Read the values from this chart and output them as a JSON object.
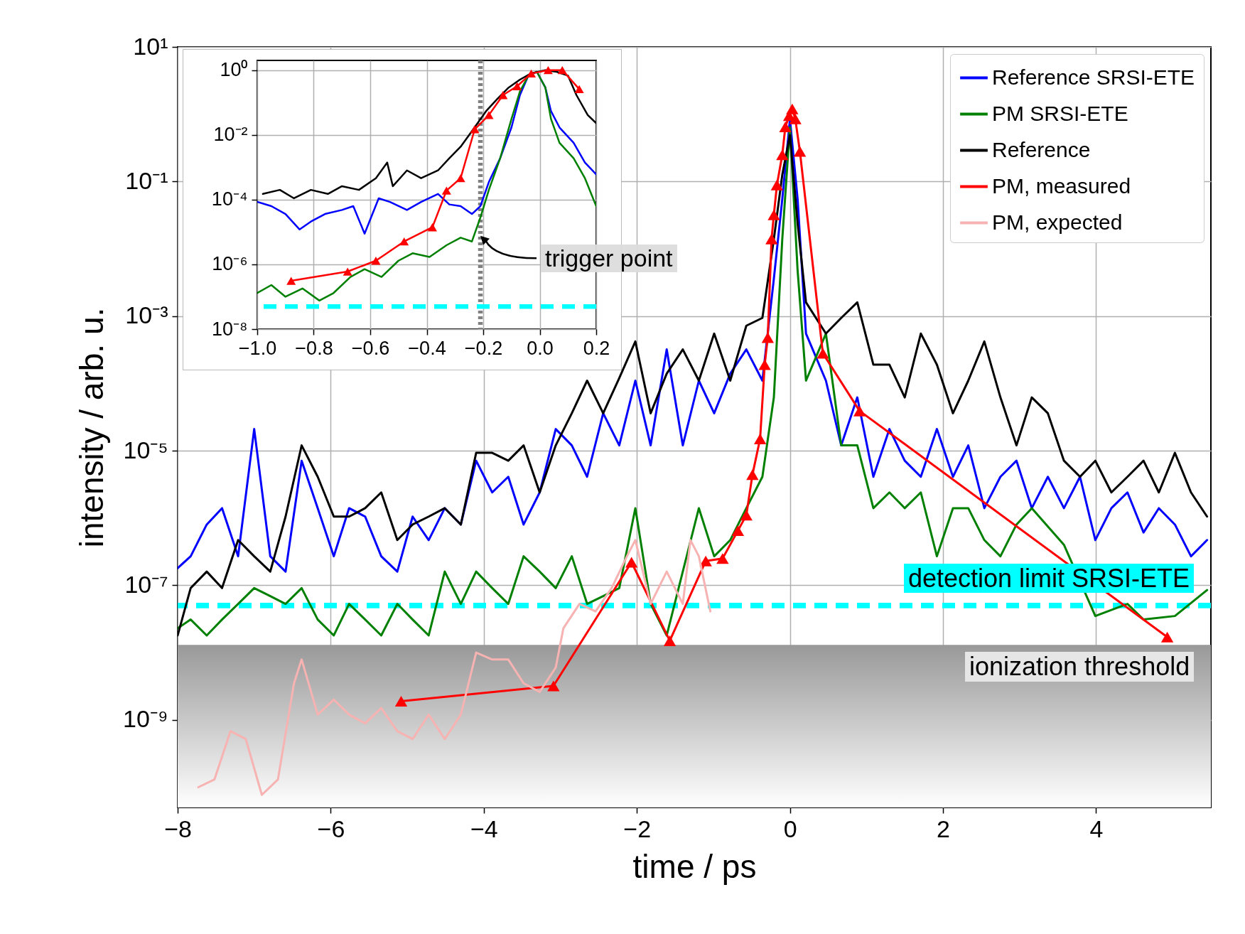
{
  "chart_data": [
    {
      "type": "line",
      "xlabel": "time / ps",
      "ylabel": "intensity / arb. u.",
      "log": "y",
      "grid": true,
      "legend": "top right",
      "xlim": [
        -8,
        5.5
      ],
      "xticks": [
        {
          "value": -8,
          "label": "−8"
        },
        {
          "value": -6,
          "label": "−6"
        },
        {
          "value": -4,
          "label": "−4"
        },
        {
          "value": -2,
          "label": "−2"
        },
        0,
        2,
        4
      ],
      "ylim": [
        5e-11,
        10
      ],
      "yticks": [
        {
          "value": 10,
          "label": "10¹"
        },
        {
          "value": 0.1,
          "label": "10⁻¹"
        },
        {
          "value": 0.001,
          "label": "10⁻³"
        },
        {
          "value": 1e-05,
          "label": "10⁻⁵"
        },
        {
          "value": 1e-07,
          "label": "10⁻⁷"
        },
        {
          "value": 1e-09,
          "label": "10⁻⁹"
        }
      ],
      "x": [
        -8.0,
        -7.83,
        -7.62,
        -7.42,
        -7.21,
        -7.0,
        -6.79,
        -6.59,
        -6.38,
        -6.17,
        -5.96,
        -5.76,
        -5.55,
        -5.34,
        -5.13,
        -4.93,
        -4.72,
        -4.51,
        -4.3,
        -4.1,
        -3.89,
        -3.68,
        -3.48,
        -3.27,
        -3.06,
        -2.85,
        -2.65,
        -2.44,
        -2.23,
        -2.02,
        -1.82,
        -1.61,
        -1.4,
        -1.19,
        -0.99,
        -0.78,
        -0.57,
        -0.36,
        -0.21,
        -0.1,
        0.0,
        0.1,
        0.21,
        0.47,
        0.67,
        0.88,
        1.09,
        1.3,
        1.5,
        1.71,
        1.92,
        2.13,
        2.33,
        2.54,
        2.75,
        2.96,
        3.16,
        3.37,
        3.58,
        3.79,
        3.99,
        4.2,
        4.41,
        4.62,
        4.82,
        5.03,
        5.24,
        5.45
      ],
      "series": [
        {
          "name": "Reference SRSI-ETE",
          "color": "#0000ff",
          "values": [
            1.8e-07,
            2.7e-07,
            8e-07,
            1.4e-06,
            2.7e-07,
            2.1e-05,
            2.7e-07,
            1.6e-07,
            7.1e-06,
            1.4e-06,
            2.7e-07,
            1.4e-06,
            1.05e-06,
            2.7e-07,
            1.6e-07,
            1.05e-06,
            4.7e-07,
            1.4e-06,
            8e-07,
            7.1e-06,
            2.4e-06,
            4.1e-06,
            8e-07,
            2.4e-06,
            2.1e-05,
            1.2e-05,
            4.1e-06,
            3.6e-05,
            1.2e-05,
            0.00011,
            1.2e-05,
            0.00032,
            1.2e-05,
            0.00011,
            3.6e-05,
            0.00014,
            0.00032,
            0.00011,
            0.0036,
            0.055,
            0.84,
            0.055,
            0.00055,
            0.00011,
            1.2e-05,
            6.2e-05,
            4.1e-06,
            2.1e-05,
            7.1e-06,
            4.1e-06,
            2.1e-05,
            4.1e-06,
            1.2e-05,
            1.4e-06,
            4.1e-06,
            7.1e-06,
            1.4e-06,
            4.1e-06,
            1.4e-06,
            4.1e-06,
            4.7e-07,
            1.4e-06,
            2.4e-06,
            6.1e-07,
            1.4e-06,
            8e-07,
            2.7e-07,
            4.7e-07
          ]
        },
        {
          "name": "PM SRSI-ETE",
          "color": "#008000",
          "x": [
            -8.0,
            -7.83,
            -7.62,
            -7.42,
            -7.21,
            -7.0,
            -6.79,
            -6.59,
            -6.38,
            -6.17,
            -5.96,
            -5.76,
            -5.55,
            -5.34,
            -5.13,
            -4.93,
            -4.72,
            -4.51,
            -4.3,
            -4.1,
            -3.89,
            -3.68,
            -3.48,
            -3.27,
            -3.06,
            -2.85,
            -2.65,
            -2.44,
            -2.23,
            -2.02,
            -1.82,
            -1.61,
            -1.4,
            -1.19,
            -0.99,
            -0.78,
            -0.57,
            -0.36,
            -0.21,
            -0.1,
            0.0,
            0.1,
            0.21,
            0.47,
            0.67,
            0.88,
            1.09,
            1.3,
            1.5,
            1.71,
            1.92,
            2.13,
            2.33,
            2.54,
            2.75,
            2.96,
            3.16,
            3.58,
            3.99,
            4.41,
            4.62,
            5.03,
            5.45
          ],
          "values": [
            2.3e-08,
            3.1e-08,
            1.8e-08,
            3.1e-08,
            5.3e-08,
            9.1e-08,
            6.9e-08,
            5.3e-08,
            9.1e-08,
            3.1e-08,
            1.8e-08,
            5.3e-08,
            3.1e-08,
            1.8e-08,
            5.3e-08,
            3.1e-08,
            1.8e-08,
            1.6e-07,
            5.3e-08,
            1.6e-07,
            9.1e-08,
            5.3e-08,
            2.7e-07,
            1.6e-07,
            9.1e-08,
            2.7e-07,
            5.3e-08,
            6.9e-08,
            9.1e-08,
            1.4e-06,
            5.3e-08,
            1.8e-08,
            1.6e-07,
            1.4e-06,
            2.7e-07,
            4.7e-07,
            1.4e-06,
            4.1e-06,
            6.2e-05,
            0.014,
            0.64,
            0.0048,
            0.00011,
            0.00055,
            1.2e-05,
            1.2e-05,
            1.4e-06,
            2.4e-06,
            1.4e-06,
            2.4e-06,
            2.7e-07,
            1.4e-06,
            1.4e-06,
            4.7e-07,
            2.7e-07,
            8e-07,
            1.4e-06,
            4e-07,
            3.5e-08,
            5.3e-08,
            3.1e-08,
            3.5e-08,
            8.5e-08
          ]
        },
        {
          "name": "Reference",
          "color": "#000000",
          "values": [
            1.8e-08,
            9.1e-08,
            1.6e-07,
            9.1e-08,
            4.7e-07,
            2.7e-07,
            1.6e-07,
            1.05e-06,
            1.2e-05,
            4.1e-06,
            1.05e-06,
            1.05e-06,
            1.4e-06,
            2.4e-06,
            4.7e-07,
            8e-07,
            1.05e-06,
            1.4e-06,
            8e-07,
            9.3e-06,
            9.3e-06,
            7.1e-06,
            1.2e-05,
            2.4e-06,
            1.2e-05,
            3.6e-05,
            0.00011,
            3.6e-05,
            0.00012,
            0.00042,
            3.6e-05,
            0.00014,
            0.00032,
            0.00011,
            0.00055,
            0.00011,
            0.00072,
            0.00094,
            0.014,
            0.126,
            0.49,
            0.024,
            0.0016,
            0.00055,
            0.00094,
            0.0016,
            0.00019,
            0.00019,
            6.2e-05,
            0.00055,
            0.00019,
            3.6e-05,
            0.00011,
            0.00042,
            6.2e-05,
            1.2e-05,
            6.2e-05,
            3.6e-05,
            7.1e-06,
            4.1e-06,
            7.1e-06,
            2.4e-06,
            4.1e-06,
            7.1e-06,
            2.4e-06,
            9.3e-06,
            2.4e-06,
            1.05e-06
          ]
        },
        {
          "name": "PM, measured",
          "color": "#ff0000",
          "marker": "triangle",
          "x": [
            -5.08,
            -3.09,
            -2.07,
            -1.57,
            -1.1,
            -0.88,
            -0.68,
            -0.57,
            -0.49,
            -0.39,
            -0.33,
            -0.29,
            -0.24,
            -0.21,
            -0.17,
            -0.1,
            -0.06,
            -0.01,
            0.03,
            0.07,
            0.13,
            0.43,
            0.91,
            4.93
          ],
          "values": [
            1.9e-09,
            3.2e-09,
            2.2e-07,
            1.5e-08,
            2.3e-07,
            2.5e-07,
            6.5e-07,
            1.1e-06,
            4.4e-06,
            1.5e-05,
            0.00019,
            0.00048,
            0.014,
            0.032,
            0.089,
            0.25,
            0.65,
            0.95,
            1.2,
            0.85,
            0.28,
            0.00028,
            3.9e-05,
            1.7e-08
          ]
        },
        {
          "name": "PM, expected",
          "color": "#f7b2b2",
          "x": [
            -7.73,
            -7.52,
            -7.31,
            -7.11,
            -6.9,
            -6.69,
            -6.48,
            -6.38,
            -6.17,
            -5.96,
            -5.76,
            -5.55,
            -5.34,
            -5.13,
            -4.93,
            -4.72,
            -4.51,
            -4.3,
            -4.1,
            -3.89,
            -3.68,
            -3.48,
            -3.27,
            -3.06,
            -2.96,
            -2.75,
            -2.54,
            -2.33,
            -2.13,
            -2.02,
            -1.82,
            -1.61,
            -1.4,
            -1.3,
            -1.19,
            -1.04
          ],
          "values": [
            1e-10,
            1.3e-10,
            6.8e-10,
            5.2e-10,
            7.7e-11,
            1.3e-10,
            3.5e-09,
            7.9e-09,
            1.2e-09,
            2e-09,
            1.2e-09,
            8.9e-10,
            1.5e-09,
            6.8e-10,
            5.2e-10,
            1.2e-09,
            5.2e-10,
            1.2e-09,
            1e-08,
            7.9e-09,
            7.9e-09,
            3.5e-09,
            2.6e-09,
            6e-09,
            2.3e-08,
            5.3e-08,
            4.1e-08,
            9.1e-08,
            2.7e-07,
            4.7e-07,
            5.3e-08,
            1.6e-07,
            5.3e-08,
            4.7e-07,
            2.7e-07,
            4.1e-08
          ]
        }
      ],
      "ref_lines": [
        {
          "axis": "y",
          "value": 5e-08,
          "label": "detection limit SRSI-ETE",
          "color": "#00ffff",
          "line_style": "dashed"
        }
      ],
      "bands": [
        {
          "axis": "y",
          "from": 5e-11,
          "to": 1.3e-08,
          "label": "ionization threshold",
          "color": "#999999"
        }
      ]
    },
    {
      "type": "line",
      "log": "y",
      "grid": true,
      "xlim": [
        -1,
        0.2
      ],
      "xticks": [
        {
          "value": -1,
          "label": "−1.0"
        },
        {
          "value": -0.8,
          "label": "−0.8"
        },
        {
          "value": -0.6,
          "label": "−0.6"
        },
        {
          "value": -0.4,
          "label": "−0.4"
        },
        {
          "value": -0.2,
          "label": "−0.2"
        },
        {
          "value": 0,
          "label": "0.0"
        },
        0.2
      ],
      "ylim": [
        1e-08,
        2
      ],
      "yticks": [
        {
          "value": 1,
          "label": "10⁰"
        },
        {
          "value": 0.01,
          "label": "10⁻²"
        },
        {
          "value": 0.0001,
          "label": "10⁻⁴"
        },
        {
          "value": 1e-06,
          "label": "10⁻⁶"
        },
        {
          "value": 1e-08,
          "label": "10⁻⁸"
        }
      ],
      "series": [
        {
          "color": "#0000ff",
          "x": [
            -1.0,
            -0.95,
            -0.9,
            -0.85,
            -0.81,
            -0.76,
            -0.7,
            -0.66,
            -0.62,
            -0.57,
            -0.53,
            -0.47,
            -0.42,
            -0.36,
            -0.32,
            -0.28,
            -0.24,
            -0.21,
            -0.18,
            -0.14,
            -0.1,
            -0.07,
            -0.04,
            -0.01,
            0.02,
            0.04,
            0.07,
            0.12,
            0.16,
            0.2
          ],
          "values": [
            8.5e-05,
            6.3e-05,
            3.6e-05,
            1.2e-05,
            2.1e-05,
            3.6e-05,
            4.8e-05,
            6.3e-05,
            8.9e-06,
            0.00011,
            8.5e-05,
            4.8e-05,
            8.5e-05,
            0.00015,
            7.1e-05,
            6.3e-05,
            3.6e-05,
            6.3e-05,
            0.00035,
            0.0019,
            0.017,
            0.17,
            0.68,
            0.89,
            0.29,
            0.054,
            0.017,
            0.0057,
            0.0014,
            0.0006
          ]
        },
        {
          "color": "#008000",
          "x": [
            -1.0,
            -0.95,
            -0.9,
            -0.84,
            -0.78,
            -0.73,
            -0.67,
            -0.62,
            -0.56,
            -0.5,
            -0.45,
            -0.39,
            -0.33,
            -0.28,
            -0.24,
            -0.21,
            -0.18,
            -0.14,
            -0.1,
            -0.07,
            -0.04,
            -0.01,
            0.02,
            0.04,
            0.07,
            0.12,
            0.16,
            0.2
          ],
          "values": [
            1.3e-07,
            2.3e-07,
            1e-07,
            1.8e-07,
            7.6e-08,
            1.3e-07,
            4.1e-07,
            7.1e-07,
            4.1e-07,
            1.3e-06,
            2.2e-06,
            1.7e-06,
            3.9e-06,
            6.7e-06,
            5.1e-06,
            2.8e-05,
            0.0002,
            0.0019,
            0.031,
            0.22,
            0.68,
            0.89,
            0.29,
            0.031,
            0.0057,
            0.0019,
            0.00046,
            6.3e-05
          ]
        },
        {
          "color": "#000000",
          "x": [
            -0.98,
            -0.92,
            -0.87,
            -0.81,
            -0.75,
            -0.7,
            -0.64,
            -0.58,
            -0.54,
            -0.52,
            -0.47,
            -0.42,
            -0.36,
            -0.32,
            -0.28,
            -0.24,
            -0.19,
            -0.15,
            -0.11,
            -0.07,
            -0.03,
            0.02,
            0.06,
            0.1,
            0.13,
            0.17,
            0.2
          ],
          "values": [
            0.00015,
            0.0002,
            0.00011,
            0.0002,
            0.00015,
            0.00026,
            0.0002,
            0.00046,
            0.0014,
            0.00026,
            0.0008,
            0.00046,
            0.0008,
            0.0019,
            0.0043,
            0.013,
            0.054,
            0.13,
            0.29,
            0.51,
            0.8,
            1.0,
            0.89,
            0.68,
            0.17,
            0.041,
            0.023
          ]
        },
        {
          "color": "#ff0000",
          "marker": "triangle",
          "x": [
            -0.88,
            -0.68,
            -0.58,
            -0.48,
            -0.38,
            -0.33,
            -0.28,
            -0.23,
            -0.18,
            -0.13,
            -0.08,
            -0.03,
            0.03,
            0.08,
            0.14
          ],
          "values": [
            3.1e-07,
            6e-07,
            1.3e-06,
            5.1e-06,
            1.4e-05,
            0.00019,
            0.00046,
            0.015,
            0.041,
            0.17,
            0.32,
            0.79,
            1.0,
            1.0,
            0.26
          ]
        }
      ],
      "ref_lines": [
        {
          "axis": "x",
          "value": -0.21,
          "color": "#808080",
          "line_style": "dotted"
        },
        {
          "axis": "y",
          "value": 5e-08,
          "color": "#00ffff",
          "line_style": "dashed"
        }
      ],
      "annotations": [
        {
          "text": "trigger point",
          "x": -0.21,
          "y": 7.6e-06
        }
      ]
    }
  ]
}
